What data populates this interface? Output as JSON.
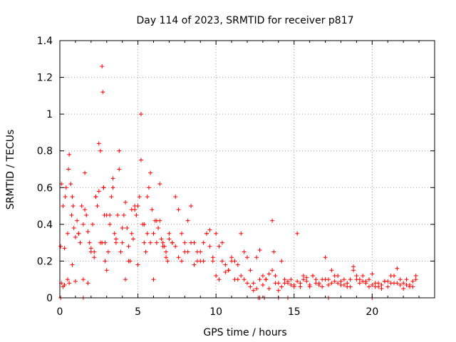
{
  "chart_data": {
    "type": "scatter",
    "title": "Day 114 of 2023, SRMTID for receiver p817",
    "xlabel": "GPS time / hours",
    "ylabel": "SRMTID / TECUs",
    "xlim": [
      0,
      24
    ],
    "ylim": [
      0,
      1.4
    ],
    "xticks": [
      0,
      5,
      10,
      15,
      20
    ],
    "xtick_labels": [
      "0",
      "5",
      "10",
      "15",
      "20"
    ],
    "yticks": [
      0,
      0.2,
      0.4,
      0.6,
      0.8,
      1.0,
      1.2,
      1.4
    ],
    "ytick_labels": [
      "0",
      "0.2",
      "0.4",
      "0.6",
      "0.8",
      "1",
      "1.2",
      "1.4"
    ],
    "grid": true,
    "marker": "plus",
    "color": "#ff0000",
    "series": [
      {
        "name": "SRMTID",
        "x": [
          0.05,
          0.1,
          0.2,
          0.3,
          0.35,
          0.4,
          0.5,
          0.55,
          0.6,
          0.7,
          0.75,
          0.8,
          0.85,
          0.9,
          1.0,
          1.1,
          1.2,
          1.3,
          1.4,
          1.5,
          1.6,
          1.7,
          1.8,
          1.9,
          2.0,
          2.1,
          2.2,
          2.3,
          2.4,
          2.5,
          2.6,
          2.7,
          2.75,
          2.8,
          2.85,
          2.9,
          3.0,
          3.1,
          3.2,
          3.3,
          3.4,
          3.5,
          3.6,
          3.7,
          3.8,
          3.9,
          4.0,
          4.1,
          4.2,
          4.3,
          4.4,
          4.5,
          4.6,
          4.7,
          4.8,
          4.9,
          5.0,
          5.1,
          5.2,
          5.3,
          5.4,
          5.5,
          5.6,
          5.7,
          5.8,
          5.9,
          6.0,
          6.1,
          6.2,
          6.3,
          6.4,
          6.5,
          6.6,
          6.7,
          6.8,
          6.9,
          7.0,
          7.2,
          7.4,
          7.6,
          7.8,
          8.0,
          8.2,
          8.4,
          8.6,
          8.8,
          9.0,
          9.2,
          9.4,
          9.6,
          9.8,
          10.0,
          10.2,
          10.4,
          10.6,
          10.8,
          11.0,
          11.2,
          11.4,
          11.6,
          11.8,
          12.0,
          12.2,
          12.4,
          12.6,
          12.8,
          13.0,
          13.2,
          13.4,
          13.6,
          13.7,
          13.8,
          14.0,
          14.2,
          14.4,
          14.6,
          14.8,
          15.0,
          15.2,
          15.4,
          15.6,
          15.8,
          16.0,
          16.2,
          16.4,
          16.6,
          16.8,
          17.0,
          17.2,
          17.4,
          17.6,
          17.8,
          18.0,
          18.2,
          18.4,
          18.6,
          18.8,
          19.0,
          19.2,
          19.4,
          19.6,
          19.8,
          20.0,
          20.2,
          20.4,
          20.6,
          20.8,
          21.0,
          21.2,
          21.4,
          21.6,
          21.8,
          22.0,
          22.2,
          22.4,
          22.6,
          22.8,
          0.1,
          0.3,
          0.5,
          0.8,
          1.0,
          1.5,
          1.8,
          2.0,
          2.3,
          2.6,
          2.8,
          2.9,
          3.2,
          3.6,
          4.0,
          4.4,
          4.8,
          5.2,
          5.6,
          6.0,
          6.4,
          6.8,
          7.2,
          7.6,
          8.0,
          8.4,
          8.8,
          9.2,
          9.6,
          10.0,
          10.4,
          10.8,
          11.2,
          11.6,
          12.0,
          12.4,
          12.8,
          13.2,
          13.6,
          14.0,
          14.4,
          14.8,
          15.2,
          15.6,
          16.0,
          16.4,
          16.8,
          17.2,
          17.6,
          18.0,
          18.4,
          18.8,
          19.2,
          19.6,
          20.0,
          20.4,
          20.8,
          21.2,
          21.6,
          22.0,
          22.4,
          22.8,
          0.2,
          0.6,
          1.2,
          1.6,
          2.2,
          2.5,
          2.7,
          3.0,
          3.4,
          3.8,
          4.2,
          4.6,
          5.0,
          5.4,
          5.8,
          6.2,
          6.6,
          7.0,
          7.4,
          7.8,
          8.2,
          8.6,
          9.0,
          9.4,
          9.8,
          10.2,
          10.6,
          11.0,
          11.4,
          11.8,
          12.2,
          12.6,
          13.0,
          13.4,
          13.8,
          14.2,
          14.6,
          15.0,
          15.4,
          15.8,
          16.2,
          16.6,
          17.0,
          17.4,
          17.8,
          18.2,
          18.6,
          19.0,
          19.4,
          19.8,
          20.2,
          20.6,
          21.0,
          21.4,
          21.8,
          22.2,
          22.6,
          0.05,
          1.5,
          12.7,
          12.8,
          13.1,
          14.0,
          14.6,
          17.2,
          20.0
        ],
        "y": [
          0.28,
          0.62,
          0.5,
          0.27,
          0.55,
          0.6,
          0.35,
          0.7,
          0.78,
          0.62,
          0.45,
          0.55,
          0.5,
          0.38,
          0.33,
          0.42,
          0.35,
          0.3,
          0.5,
          0.4,
          0.68,
          0.45,
          0.36,
          0.3,
          0.27,
          0.4,
          0.22,
          0.55,
          0.5,
          0.84,
          0.8,
          1.26,
          1.12,
          0.6,
          0.45,
          0.3,
          0.15,
          0.25,
          0.4,
          0.55,
          0.6,
          0.35,
          0.3,
          0.45,
          0.7,
          0.25,
          0.3,
          0.45,
          0.52,
          0.38,
          0.28,
          0.2,
          0.35,
          0.32,
          0.5,
          0.45,
          0.5,
          0.55,
          0.75,
          0.4,
          0.3,
          0.25,
          0.55,
          0.6,
          0.68,
          0.48,
          0.35,
          0.42,
          0.3,
          0.38,
          0.62,
          0.32,
          0.3,
          0.28,
          0.25,
          0.2,
          0.35,
          0.3,
          0.28,
          0.22,
          0.2,
          0.25,
          0.42,
          0.3,
          0.18,
          0.2,
          0.25,
          0.3,
          0.35,
          0.37,
          0.2,
          0.12,
          0.1,
          0.3,
          0.18,
          0.15,
          0.22,
          0.2,
          0.18,
          0.12,
          0.1,
          0.08,
          0.06,
          0.04,
          0.05,
          0.1,
          0.07,
          0.1,
          0.13,
          0.42,
          0.25,
          0.12,
          0.08,
          0.06,
          0.1,
          0.08,
          0.07,
          0.06,
          0.09,
          0.08,
          0.1,
          0.09,
          0.07,
          0.12,
          0.1,
          0.08,
          0.06,
          0.22,
          0.1,
          0.08,
          0.09,
          0.12,
          0.07,
          0.1,
          0.08,
          0.06,
          0.15,
          0.1,
          0.08,
          0.12,
          0.09,
          0.1,
          0.07,
          0.06,
          0.08,
          0.07,
          0.09,
          0.06,
          0.08,
          0.12,
          0.16,
          0.1,
          0.08,
          0.07,
          0.06,
          0.09,
          0.12,
          0.08,
          0.07,
          0.1,
          0.18,
          0.09,
          0.1,
          0.08,
          0.25,
          0.55,
          0.3,
          0.6,
          0.2,
          0.45,
          0.32,
          0.38,
          0.2,
          0.48,
          1.0,
          0.35,
          0.1,
          0.42,
          0.22,
          0.3,
          0.48,
          0.3,
          0.5,
          0.25,
          0.2,
          0.28,
          0.35,
          0.2,
          0.15,
          0.1,
          0.35,
          0.22,
          0.08,
          0.26,
          0.1,
          0.15,
          0.04,
          0.08,
          0.1,
          0.35,
          0.12,
          0.06,
          0.08,
          0.1,
          0.07,
          0.12,
          0.09,
          0.06,
          0.17,
          0.1,
          0.08,
          0.13,
          0.06,
          0.09,
          0.12,
          0.08,
          0.05,
          0.07,
          0.1,
          0.06,
          0.08,
          0.35,
          0.48,
          0.25,
          0.58,
          0.3,
          0.45,
          0.65,
          0.8,
          0.1,
          0.48,
          0.18,
          0.4,
          0.3,
          0.42,
          0.28,
          0.32,
          0.55,
          0.35,
          0.25,
          0.3,
          0.2,
          0.35,
          0.22,
          0.28,
          0.14,
          0.2,
          0.1,
          0.25,
          0.15,
          0.22,
          0.12,
          0.05,
          0.08,
          0.2,
          0.09,
          0.07,
          0.06,
          0.11,
          0.12,
          0.07,
          0.1,
          0.15,
          0.08,
          0.07,
          0.1,
          0.12,
          0.09,
          0.06,
          0.08,
          0.05,
          0.09,
          0.08,
          0.07,
          0.1,
          0.06,
          0.0,
          0.0,
          0.0,
          0.0,
          0.0,
          0.0,
          0.0,
          0.0,
          0.0
        ]
      }
    ]
  }
}
